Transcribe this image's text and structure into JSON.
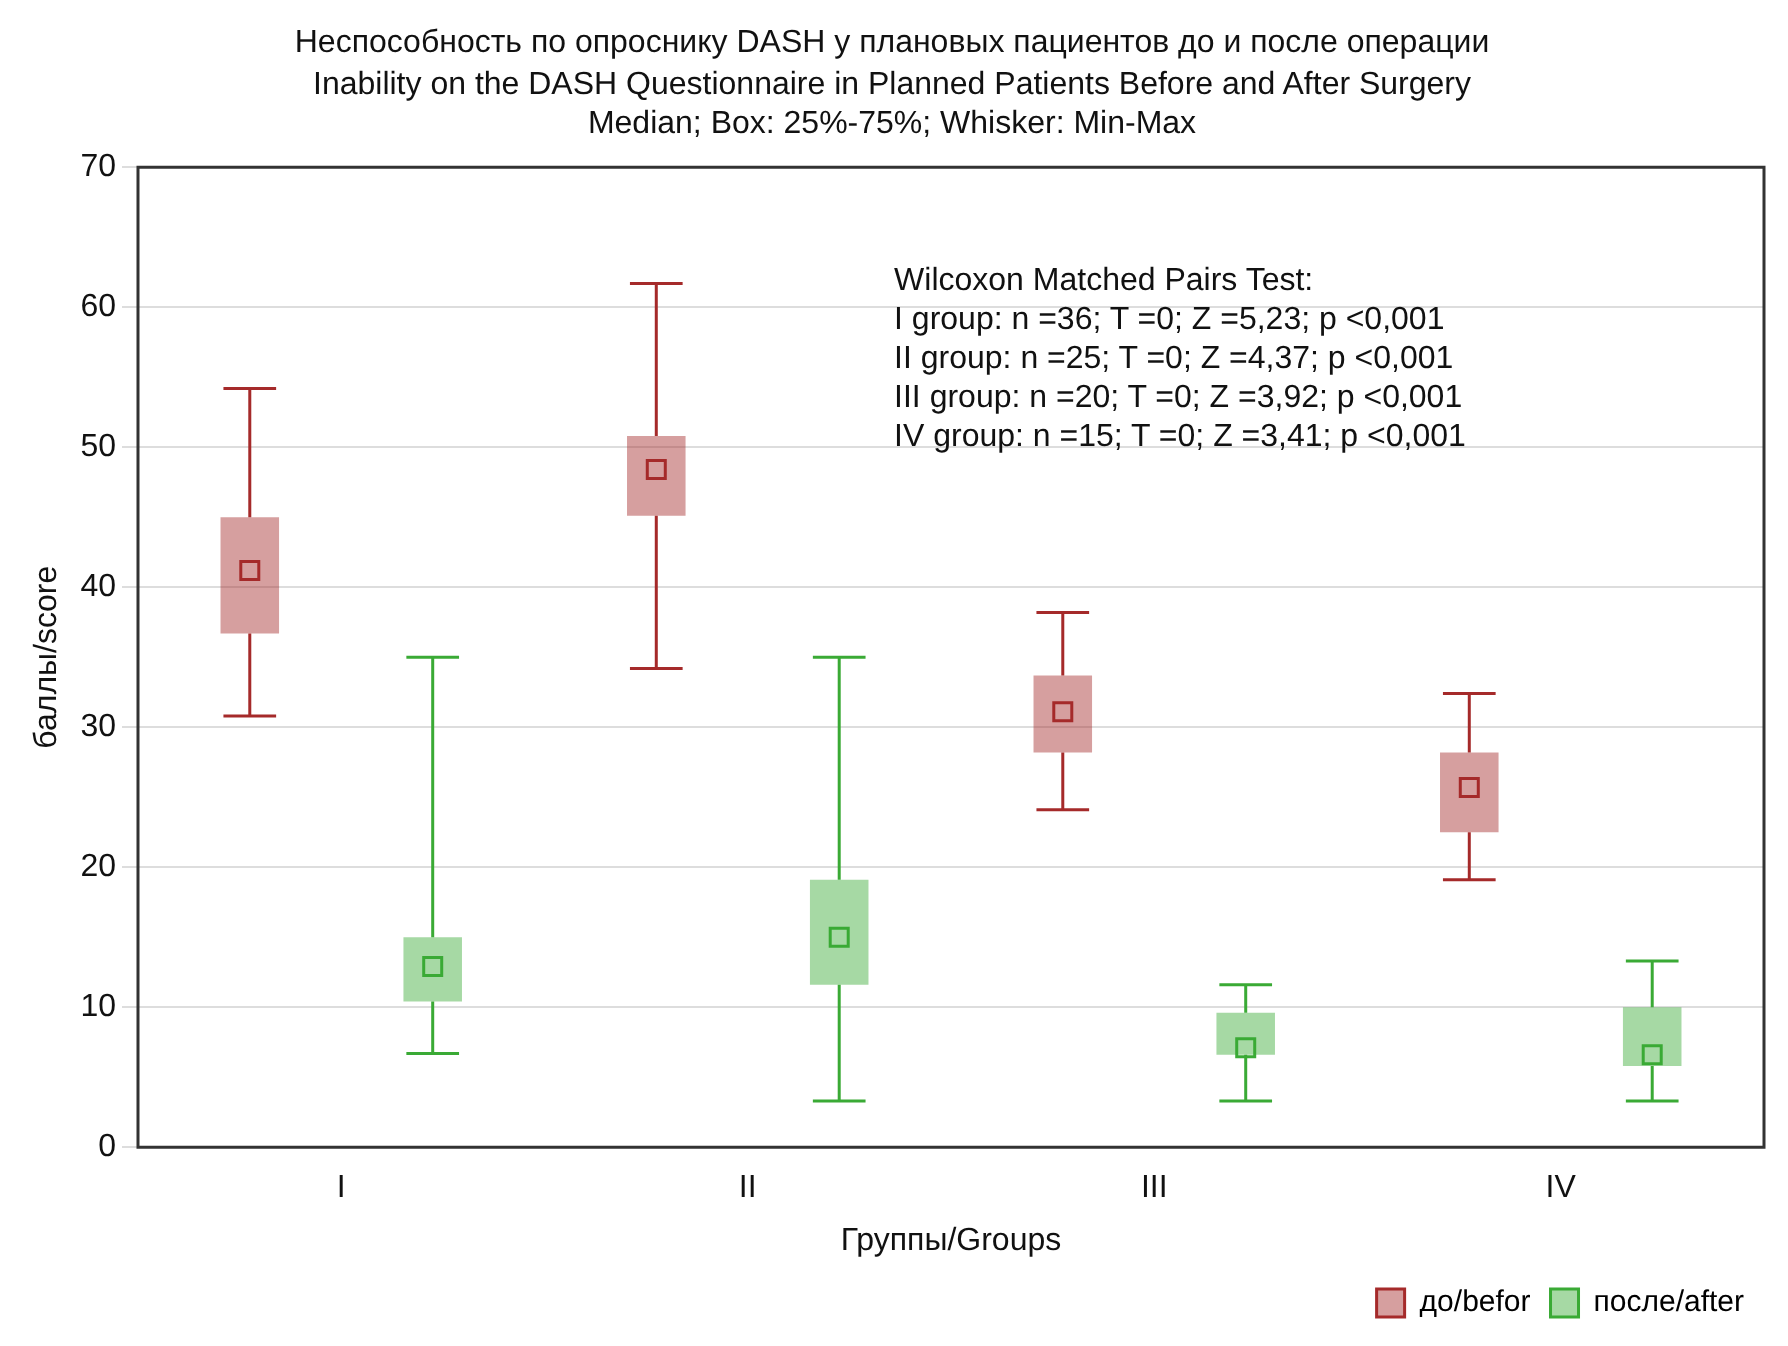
{
  "chart_data": {
    "type": "box",
    "title": "Неспособность по опроснику DASH у плановых пациентов до и после операции",
    "subtitle": "Inability on the DASH Questionnaire in Planned Patients Before and After Surgery",
    "xlabel": "Группы/Groups",
    "ylabel": "баллы/score",
    "categories": [
      "I",
      "II",
      "III",
      "IV"
    ],
    "series": [
      {
        "name": "до/befor",
        "color": "#a52a2a",
        "boxes": [
          {
            "low": 30.8,
            "q1": 36.7,
            "median": 41.2,
            "q3": 45.0,
            "high": 54.2
          },
          {
            "low": 34.2,
            "q1": 45.1,
            "median": 48.4,
            "q3": 50.8,
            "high": 61.7
          },
          {
            "low": 24.1,
            "q1": 28.2,
            "median": 31.1,
            "q3": 33.7,
            "high": 38.2
          },
          {
            "low": 19.1,
            "q1": 22.5,
            "median": 25.7,
            "q3": 28.2,
            "high": 32.4
          }
        ]
      },
      {
        "name": "после/after",
        "color": "#3aaa35",
        "boxes": [
          {
            "low": 6.7,
            "q1": 10.4,
            "median": 12.9,
            "q3": 15.0,
            "high": 35.0
          },
          {
            "low": 3.3,
            "q1": 11.6,
            "median": 15.0,
            "q3": 19.1,
            "high": 35.0
          },
          {
            "low": 3.3,
            "q1": 6.6,
            "median": 7.1,
            "q3": 9.6,
            "high": 11.6
          },
          {
            "low": 3.3,
            "q1": 5.8,
            "median": 6.6,
            "q3": 10.0,
            "high": 13.3
          }
        ]
      }
    ],
    "ylim": [
      0,
      70
    ],
    "yticks": [
      0,
      10,
      20,
      30,
      40,
      50,
      60,
      70
    ],
    "grid": "y",
    "legend": "bottom right",
    "marker": "square",
    "annotations": [
      "Median; Box: 25%-75%; Whisker: Min-Max",
      "Wilcoxon Matched Pairs Test:",
      "I group: n =36; T =0; Z =5,23; p <0,001",
      "II group: n =25; T =0; Z =4,37; p <0,001",
      "III group: n =20; T =0; Z =3,92; p <0,001",
      "IV group: n =15; T =0; Z =3,41; p <0,001"
    ]
  }
}
